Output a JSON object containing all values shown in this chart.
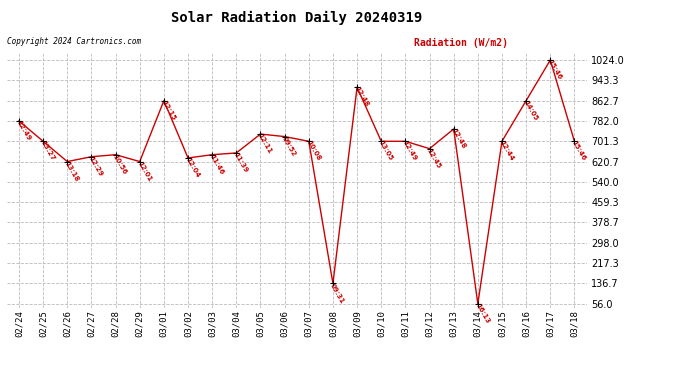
{
  "title": "Solar Radiation Daily 20240319",
  "copyright": "Copyright 2024 Cartronics.com",
  "legend_label": "Radiation (W/m2)",
  "dates": [
    "02/24",
    "02/25",
    "02/26",
    "02/27",
    "02/28",
    "02/29",
    "03/01",
    "03/02",
    "03/03",
    "03/04",
    "03/05",
    "03/06",
    "03/07",
    "03/08",
    "03/09",
    "03/10",
    "03/11",
    "03/12",
    "03/13",
    "03/14",
    "03/15",
    "03/16",
    "03/17",
    "03/18"
  ],
  "values": [
    782.0,
    701.3,
    620.7,
    640.0,
    648.0,
    620.7,
    862.7,
    635.0,
    648.0,
    655.0,
    730.0,
    720.0,
    701.3,
    136.7,
    916.0,
    701.3,
    701.3,
    672.0,
    750.0,
    56.0,
    701.3,
    862.7,
    1024.0,
    701.3
  ],
  "labels": [
    "12:49",
    "13:27",
    "13:18",
    "12:29",
    "10:56",
    "12:01",
    "12:15",
    "12:04",
    "11:46",
    "11:39",
    "12:11",
    "09:52",
    "10:08",
    "09:31",
    "12:48",
    "13:05",
    "12:49",
    "12:45",
    "12:48",
    "16:13",
    "12:44",
    "14:05",
    "15:46",
    "15:46"
  ],
  "line_color": "#cc0000",
  "marker_color": "#000000",
  "label_color": "#cc0000",
  "bg_color": "#ffffff",
  "grid_color": "#bbbbbb",
  "title_color": "#000000",
  "ymin": 56.0,
  "ymax": 1024.0,
  "yticks": [
    56.0,
    136.7,
    217.3,
    298.0,
    378.7,
    459.3,
    540.0,
    620.7,
    701.3,
    782.0,
    862.7,
    943.3,
    1024.0
  ],
  "ytick_labels": [
    "56.0",
    "136.7",
    "217.3",
    "298.0",
    "378.7",
    "459.3",
    "540.0",
    "620.7",
    "701.3",
    "782.0",
    "862.7",
    "943.3",
    "1024.0"
  ]
}
